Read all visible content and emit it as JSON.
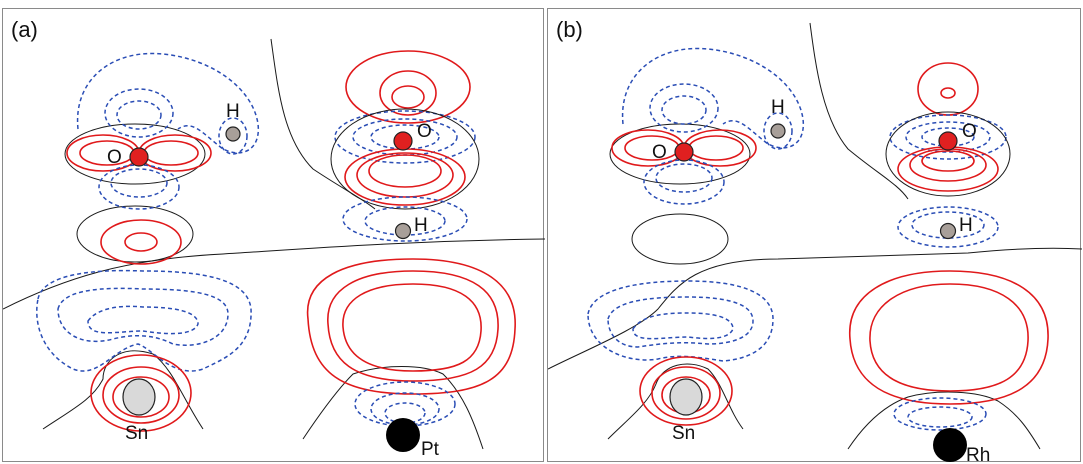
{
  "panels": [
    {
      "id": "a",
      "label": "(a)",
      "atoms": {
        "o_left": "O",
        "h_left": "H",
        "o_right": "O",
        "h_right": "H",
        "substrate": "Sn",
        "metal": "Pt"
      }
    },
    {
      "id": "b",
      "label": "(b)",
      "atoms": {
        "o_left": "O",
        "h_left": "H",
        "o_right": "O",
        "h_right": "H",
        "substrate": "Sn",
        "metal": "Rh"
      }
    }
  ],
  "colors": {
    "positive_contour": "#e0191b",
    "negative_contour": "#2a4db5",
    "zero_contour": "#1a1a1a",
    "oxygen": "#e02020",
    "hydrogen": "#a89f99",
    "tin": "#d9d9d9",
    "metal": "#000000"
  }
}
